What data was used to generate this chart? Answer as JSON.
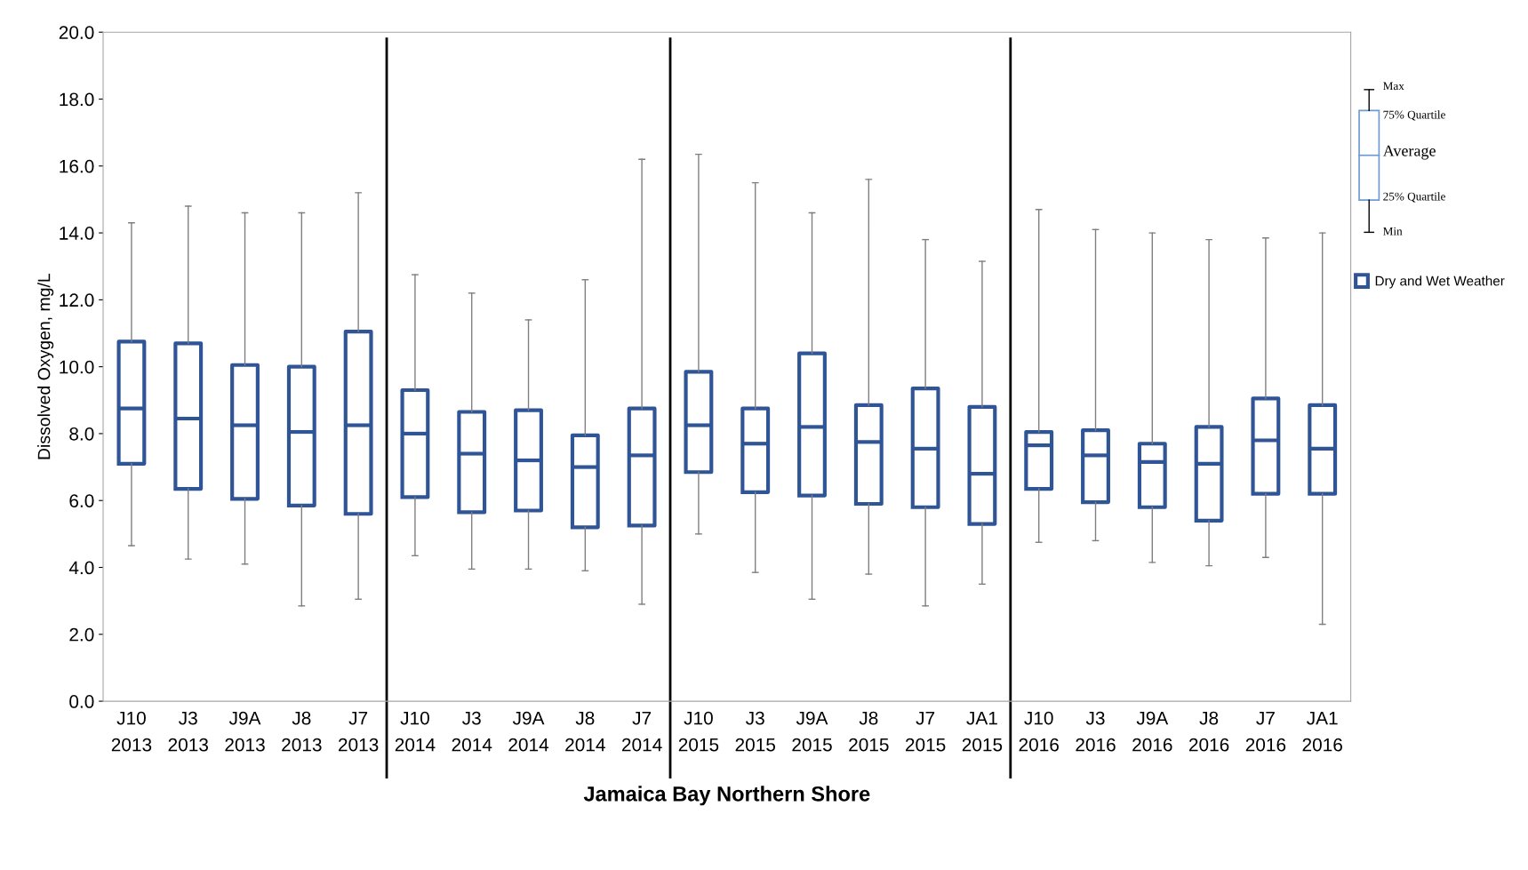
{
  "chart_data": {
    "type": "box",
    "xlabel": "Jamaica Bay Northern Shore",
    "ylabel": "Dissolved Oxygen, mg/L",
    "categories": [
      "J10\n2013",
      "J3\n2013",
      "J9A\n2013",
      "J8\n2013",
      "J7\n2013",
      "J10\n2014",
      "J3\n2014",
      "J9A\n2014",
      "J8\n2014",
      "J7\n2014",
      "J10\n2015",
      "J3\n2015",
      "J9A\n2015",
      "J8\n2015",
      "J7\n2015",
      "JA1\n2015",
      "J10\n2016",
      "J3\n2016",
      "J9A\n2016",
      "J8\n2016",
      "J7\n2016",
      "JA1\n2016"
    ],
    "series": [
      {
        "name": "Dry and Wet Weather",
        "color": "#2f5597",
        "boxes": [
          {
            "low": 4.65,
            "q1": 7.1,
            "median": 8.75,
            "q3": 10.75,
            "high": 14.3
          },
          {
            "low": 4.25,
            "q1": 6.35,
            "median": 8.45,
            "q3": 10.7,
            "high": 14.8
          },
          {
            "low": 4.1,
            "q1": 6.05,
            "median": 8.25,
            "q3": 10.05,
            "high": 14.6
          },
          {
            "low": 2.85,
            "q1": 5.85,
            "median": 8.05,
            "q3": 10.0,
            "high": 14.6
          },
          {
            "low": 3.05,
            "q1": 5.6,
            "median": 8.25,
            "q3": 11.05,
            "high": 15.2
          },
          {
            "low": 4.35,
            "q1": 6.1,
            "median": 8.0,
            "q3": 9.3,
            "high": 12.75
          },
          {
            "low": 3.95,
            "q1": 5.65,
            "median": 7.4,
            "q3": 8.65,
            "high": 12.2
          },
          {
            "low": 3.95,
            "q1": 5.7,
            "median": 7.2,
            "q3": 8.7,
            "high": 11.4
          },
          {
            "low": 3.9,
            "q1": 5.2,
            "median": 7.0,
            "q3": 7.95,
            "high": 12.6
          },
          {
            "low": 2.9,
            "q1": 5.25,
            "median": 7.35,
            "q3": 8.75,
            "high": 16.2
          },
          {
            "low": 5.0,
            "q1": 6.85,
            "median": 8.25,
            "q3": 9.85,
            "high": 16.35
          },
          {
            "low": 3.85,
            "q1": 6.25,
            "median": 7.7,
            "q3": 8.75,
            "high": 15.5
          },
          {
            "low": 3.05,
            "q1": 6.15,
            "median": 8.2,
            "q3": 10.4,
            "high": 14.6
          },
          {
            "low": 3.8,
            "q1": 5.9,
            "median": 7.75,
            "q3": 8.85,
            "high": 15.6
          },
          {
            "low": 2.85,
            "q1": 5.8,
            "median": 7.55,
            "q3": 9.35,
            "high": 13.8
          },
          {
            "low": 3.5,
            "q1": 5.3,
            "median": 6.8,
            "q3": 8.8,
            "high": 13.15
          },
          {
            "low": 4.75,
            "q1": 6.35,
            "median": 7.65,
            "q3": 8.05,
            "high": 14.7
          },
          {
            "low": 4.8,
            "q1": 5.95,
            "median": 7.35,
            "q3": 8.1,
            "high": 14.1
          },
          {
            "low": 4.15,
            "q1": 5.8,
            "median": 7.15,
            "q3": 7.7,
            "high": 14.0
          },
          {
            "low": 4.05,
            "q1": 5.4,
            "median": 7.1,
            "q3": 8.2,
            "high": 13.8
          },
          {
            "low": 4.3,
            "q1": 6.2,
            "median": 7.8,
            "q3": 9.05,
            "high": 13.85
          },
          {
            "low": 2.3,
            "q1": 6.2,
            "median": 7.55,
            "q3": 8.85,
            "high": 14.0
          }
        ]
      }
    ],
    "ylim": [
      0,
      20
    ],
    "yticks": [
      {
        "value": 0,
        "label": "0.0"
      },
      {
        "value": 2,
        "label": "2.0"
      },
      {
        "value": 4,
        "label": "4.0"
      },
      {
        "value": 6,
        "label": "6.0"
      },
      {
        "value": 8,
        "label": "8.0"
      },
      {
        "value": 10,
        "label": "10.0"
      },
      {
        "value": 12,
        "label": "12.0"
      },
      {
        "value": 14,
        "label": "14.0"
      },
      {
        "value": 16,
        "label": "16.0"
      },
      {
        "value": 18,
        "label": "18.0"
      },
      {
        "value": 20,
        "label": "20.0"
      }
    ],
    "annotations": [
      "Max",
      "75% Quartile",
      "Average",
      "25% Quartile",
      "Min"
    ],
    "grid": false,
    "legend": "right"
  }
}
